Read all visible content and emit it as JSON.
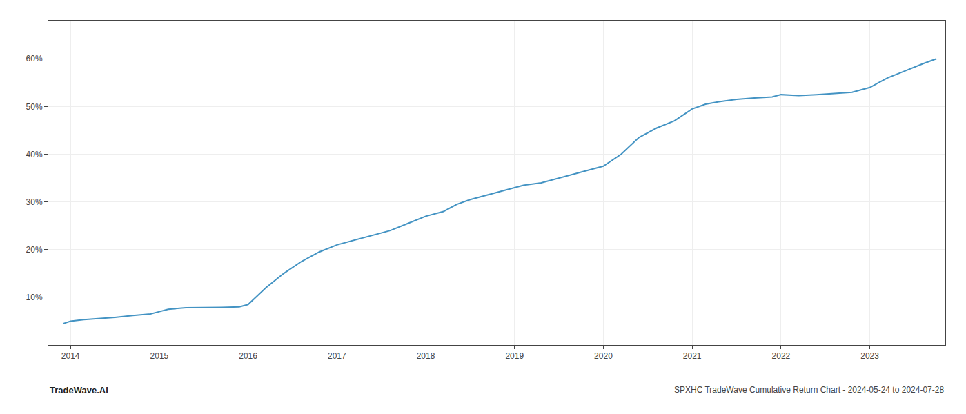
{
  "chart_data": {
    "type": "line",
    "title": "SPXHC TradeWave Cumulative Return Chart - 2024-05-24 to 2024-07-28",
    "annotations": [
      "TradeWave.AI"
    ],
    "color": "#4393c3",
    "grid": true,
    "x": [
      2013.92,
      2014.0,
      2014.15,
      2014.3,
      2014.5,
      2014.7,
      2014.9,
      2015.0,
      2015.1,
      2015.3,
      2015.5,
      2015.7,
      2015.9,
      2016.0,
      2016.2,
      2016.4,
      2016.6,
      2016.8,
      2017.0,
      2017.2,
      2017.4,
      2017.6,
      2017.8,
      2018.0,
      2018.2,
      2018.35,
      2018.5,
      2018.7,
      2018.9,
      2019.0,
      2019.1,
      2019.3,
      2019.5,
      2019.7,
      2019.9,
      2020.0,
      2020.2,
      2020.4,
      2020.6,
      2020.8,
      2021.0,
      2021.15,
      2021.3,
      2021.5,
      2021.7,
      2021.9,
      2022.0,
      2022.2,
      2022.4,
      2022.6,
      2022.8,
      2023.0,
      2023.2,
      2023.4,
      2023.6,
      2023.75
    ],
    "values": [
      4.5,
      5.0,
      5.3,
      5.5,
      5.8,
      6.2,
      6.5,
      7.0,
      7.5,
      7.8,
      7.8,
      7.9,
      8.0,
      8.5,
      12.0,
      15.0,
      17.5,
      19.5,
      21.0,
      22.0,
      23.0,
      24.0,
      25.5,
      27.0,
      28.0,
      29.5,
      30.5,
      31.5,
      32.5,
      33.0,
      33.5,
      34.0,
      35.0,
      36.0,
      37.0,
      37.5,
      40.0,
      43.5,
      45.5,
      47.0,
      49.5,
      50.5,
      51.0,
      51.5,
      51.8,
      52.0,
      52.5,
      52.3,
      52.5,
      52.8,
      53.0,
      54.0,
      56.0,
      57.5,
      59.0,
      60.0
    ],
    "xlim": [
      2013.75,
      2023.85
    ],
    "xticks": [
      2014,
      2015,
      2016,
      2017,
      2018,
      2019,
      2020,
      2021,
      2022,
      2023
    ],
    "ylim": [
      0,
      68
    ],
    "yticks": [
      {
        "value": 10,
        "label": "10%"
      },
      {
        "value": 20,
        "label": "20%"
      },
      {
        "value": 30,
        "label": "30%"
      },
      {
        "value": 40,
        "label": "40%"
      },
      {
        "value": 50,
        "label": "50%"
      },
      {
        "value": 60,
        "label": "60%"
      }
    ]
  }
}
